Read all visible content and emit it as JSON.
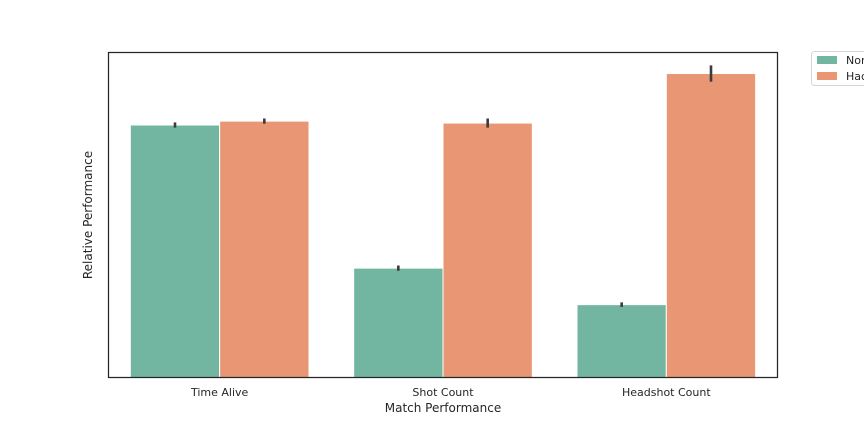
{
  "chart_data": {
    "type": "bar",
    "title": "",
    "xlabel": "Match Performance",
    "ylabel": "Relative Performance",
    "categories": [
      "Time Alive",
      "Shot Count",
      "Headshot Count"
    ],
    "series": [
      {
        "name": "Nor",
        "color": "#72b6a1",
        "values": [
          0.776,
          0.337,
          0.225
        ],
        "error": [
          0.008,
          0.008,
          0.007
        ]
      },
      {
        "name": "Hac",
        "color": "#e99675",
        "values": [
          0.788,
          0.782,
          0.934
        ],
        "error": [
          0.008,
          0.014,
          0.025
        ]
      }
    ],
    "ylim": [
      0,
      1.0
    ],
    "y_ticks_shown": false,
    "grid": false,
    "legend_position": "outside-top-right",
    "error_bar_color": "#3b3b3b",
    "axis_color": "#262626"
  }
}
